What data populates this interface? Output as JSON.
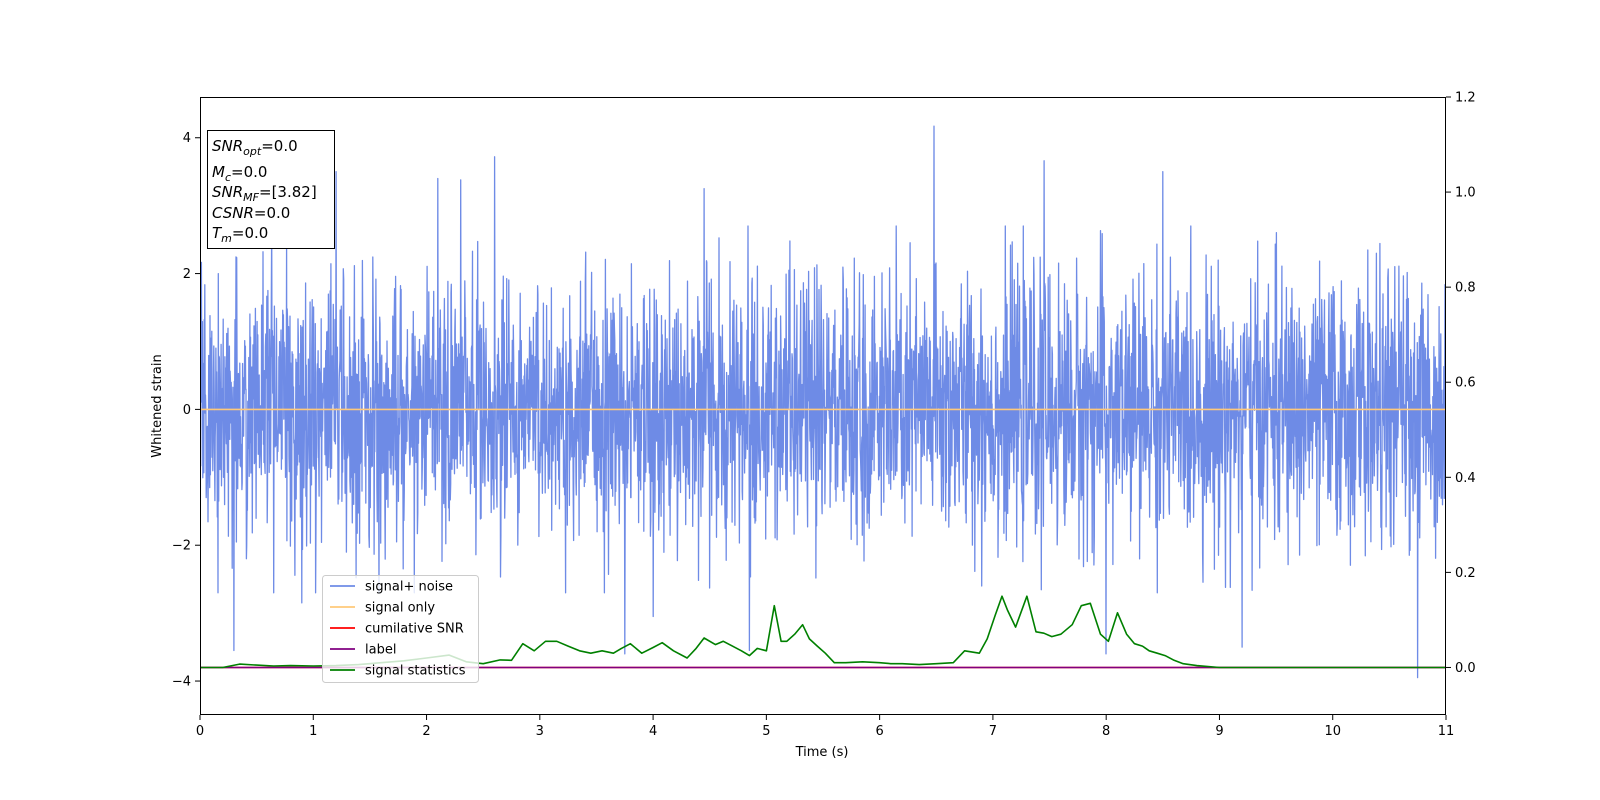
{
  "chart_data": {
    "type": "line",
    "xlabel": "Time (s)",
    "ylabel": "Whitened strain",
    "xlim": [
      0,
      11
    ],
    "ylim": [
      -4.5,
      4.6
    ],
    "y2lim": [
      -0.1,
      1.2
    ],
    "xticks": [
      "0",
      "1",
      "2",
      "3",
      "4",
      "5",
      "6",
      "7",
      "8",
      "9",
      "10",
      "11"
    ],
    "yticks": [
      "−4",
      "−2",
      "0",
      "2",
      "4"
    ],
    "y2ticks": [
      "0.0",
      "0.2",
      "0.4",
      "0.6",
      "0.8",
      "1.0",
      "1.2"
    ],
    "grid": false,
    "legend_position": "lower-left",
    "annotation": {
      "lines": [
        {
          "base": "SNR",
          "sub": "opt",
          "value": "=0.0"
        },
        {
          "base": "M",
          "sub": "c",
          "value": "=0.0"
        },
        {
          "base": "SNR",
          "sub": "MF",
          "value": "=[3.82]"
        },
        {
          "base": "CSNR",
          "sub": "",
          "value": "=0.0"
        },
        {
          "base": "T",
          "sub": "m",
          "value": "=0.0"
        }
      ]
    },
    "series": [
      {
        "name": "signal+ noise",
        "color": "#6e8be6",
        "axis": "left",
        "kind": "noise",
        "envelope": [
          -3.95,
          4.17
        ],
        "peaks": [
          {
            "x": 0.3,
            "y": -3.55
          },
          {
            "x": 0.9,
            "y": -2.85
          },
          {
            "x": 1.2,
            "y": 3.5
          },
          {
            "x": 2.1,
            "y": 3.4
          },
          {
            "x": 2.3,
            "y": 3.38
          },
          {
            "x": 2.6,
            "y": 3.72
          },
          {
            "x": 3.75,
            "y": -3.6
          },
          {
            "x": 4.0,
            "y": -3.05
          },
          {
            "x": 4.45,
            "y": 3.25
          },
          {
            "x": 4.85,
            "y": -3.55
          },
          {
            "x": 6.48,
            "y": 4.17
          },
          {
            "x": 7.45,
            "y": 3.66
          },
          {
            "x": 8.0,
            "y": -3.6
          },
          {
            "x": 8.5,
            "y": 3.5
          },
          {
            "x": 9.2,
            "y": -3.5
          },
          {
            "x": 10.75,
            "y": -3.95
          }
        ]
      },
      {
        "name": "signal only",
        "color": "#ffc97a",
        "axis": "left",
        "x": [
          0,
          11
        ],
        "y": [
          0,
          0
        ]
      },
      {
        "name": "cumilative SNR",
        "color": "#ff0000",
        "axis": "right",
        "x": [
          0,
          11
        ],
        "y": [
          0,
          0
        ]
      },
      {
        "name": "label",
        "color": "#800080",
        "axis": "right",
        "x": [
          0,
          11
        ],
        "y": [
          0,
          0
        ]
      },
      {
        "name": "signal statistics",
        "color": "#008000",
        "axis": "right",
        "x": [
          0.0,
          0.2,
          0.35,
          0.5,
          0.65,
          0.8,
          1.0,
          1.2,
          1.4,
          1.6,
          1.8,
          2.0,
          2.2,
          2.35,
          2.5,
          2.65,
          2.75,
          2.85,
          2.95,
          3.05,
          3.15,
          3.25,
          3.35,
          3.45,
          3.55,
          3.65,
          3.72,
          3.8,
          3.9,
          4.0,
          4.08,
          4.18,
          4.3,
          4.38,
          4.45,
          4.55,
          4.62,
          4.7,
          4.78,
          4.85,
          4.92,
          5.0,
          5.07,
          5.13,
          5.18,
          5.25,
          5.32,
          5.38,
          5.45,
          5.52,
          5.6,
          5.7,
          5.85,
          6.0,
          6.1,
          6.2,
          6.35,
          6.5,
          6.65,
          6.75,
          6.88,
          6.95,
          7.02,
          7.08,
          7.13,
          7.2,
          7.3,
          7.38,
          7.45,
          7.52,
          7.6,
          7.7,
          7.78,
          7.86,
          7.95,
          8.02,
          8.1,
          8.18,
          8.25,
          8.32,
          8.38,
          8.45,
          8.52,
          8.6,
          8.68,
          8.8,
          9.0,
          9.15,
          9.25,
          9.38,
          9.5,
          9.65,
          10.0,
          10.5,
          11.0
        ],
        "y": [
          0.0,
          0.0,
          0.007,
          0.005,
          0.003,
          0.004,
          0.003,
          0.004,
          0.006,
          0.01,
          0.014,
          0.02,
          0.026,
          0.012,
          0.008,
          0.016,
          0.015,
          0.05,
          0.035,
          0.055,
          0.055,
          0.045,
          0.035,
          0.03,
          0.035,
          0.03,
          0.04,
          0.05,
          0.03,
          0.042,
          0.052,
          0.035,
          0.02,
          0.04,
          0.062,
          0.048,
          0.055,
          0.045,
          0.035,
          0.025,
          0.04,
          0.035,
          0.13,
          0.055,
          0.055,
          0.07,
          0.09,
          0.06,
          0.045,
          0.03,
          0.01,
          0.01,
          0.012,
          0.01,
          0.008,
          0.008,
          0.006,
          0.008,
          0.01,
          0.035,
          0.03,
          0.06,
          0.11,
          0.15,
          0.12,
          0.085,
          0.15,
          0.075,
          0.072,
          0.065,
          0.07,
          0.09,
          0.13,
          0.135,
          0.07,
          0.055,
          0.115,
          0.07,
          0.05,
          0.045,
          0.035,
          0.03,
          0.025,
          0.015,
          0.008,
          0.004,
          0.0,
          0.0,
          0.0,
          0.0,
          0.0,
          0.0,
          0.0,
          0.0,
          0.0
        ]
      }
    ]
  }
}
